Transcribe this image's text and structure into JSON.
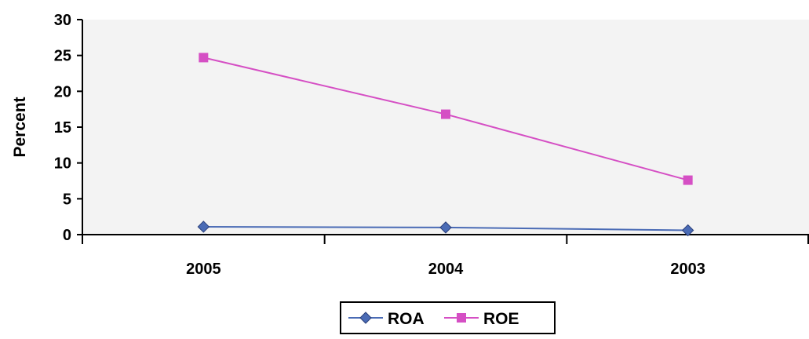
{
  "chart_data": {
    "type": "line",
    "title": "",
    "xlabel": "",
    "ylabel": "Percent",
    "categories": [
      "2005",
      "2004",
      "2003"
    ],
    "ylim": [
      0,
      30
    ],
    "yticks": [
      0,
      5,
      10,
      15,
      20,
      25,
      30
    ],
    "grid": false,
    "legend_position": "bottom",
    "series": [
      {
        "name": "ROA",
        "values": [
          1.1,
          1.0,
          0.6
        ],
        "color": "#4a6bb5",
        "marker": "diamond"
      },
      {
        "name": "ROE",
        "values": [
          24.7,
          16.8,
          7.6
        ],
        "color": "#d54fc4",
        "marker": "square"
      }
    ],
    "plot_background": "#f3f3f3"
  }
}
